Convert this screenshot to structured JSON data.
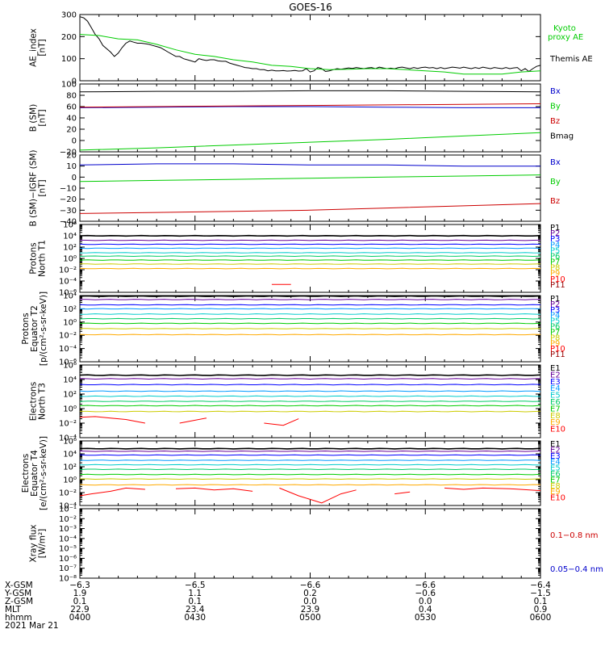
{
  "title": "GOES-16",
  "colors": {
    "black": "#000000",
    "green": "#00cc00",
    "blue": "#0000cc",
    "red": "#cc0000",
    "purple": "#9900cc",
    "p": [
      "#000000",
      "#660099",
      "#0000ff",
      "#0099ff",
      "#00cccc",
      "#00cc66",
      "#00cc00",
      "#cccc00",
      "#ffaa00",
      "#ff0000",
      "#990000"
    ]
  },
  "chart_data": [
    {
      "type": "line",
      "id": "ae",
      "ylabel": [
        "AE_index",
        "[nT]"
      ],
      "ylim": [
        0,
        300
      ],
      "ticks": [
        "0",
        "100",
        "200",
        "300"
      ],
      "scale": "linear",
      "x_range": [
        "0400",
        "0600"
      ],
      "legend": [
        {
          "text": "Kyoto",
          "color": "#00cc00"
        },
        {
          "text": "proxy AE",
          "color": "#00cc00"
        },
        {
          "text": "Themis AE",
          "color": "#000000"
        }
      ],
      "series": [
        {
          "color": "#000000",
          "x": [
            0,
            1,
            2,
            3,
            4,
            5,
            6,
            7,
            8,
            9,
            10,
            11,
            12,
            13,
            14,
            15,
            16,
            17,
            18,
            19,
            20,
            21,
            22,
            23,
            24,
            25,
            26,
            27,
            28,
            29,
            30,
            31,
            32,
            33,
            34,
            35,
            36,
            37,
            38,
            39,
            40,
            41,
            42,
            43,
            44,
            45,
            46,
            47,
            48,
            49,
            50,
            51,
            52,
            53,
            54,
            55,
            56,
            57,
            58,
            59,
            60,
            61,
            62,
            63,
            64,
            65,
            66,
            67,
            68,
            69,
            70,
            71,
            72,
            73,
            74,
            75,
            76,
            77,
            78,
            79,
            80,
            81,
            82,
            83,
            84,
            85,
            86,
            87,
            88,
            89,
            90,
            91,
            92,
            93,
            94,
            95,
            96,
            97,
            98,
            99,
            100,
            101,
            102,
            103,
            104,
            105,
            106,
            107,
            108,
            109,
            110,
            111,
            112,
            113,
            114,
            115,
            116,
            117,
            118,
            119,
            120
          ],
          "y": [
            290,
            285,
            270,
            240,
            210,
            190,
            160,
            145,
            130,
            110,
            125,
            150,
            170,
            180,
            175,
            170,
            170,
            168,
            165,
            160,
            155,
            150,
            140,
            130,
            120,
            110,
            110,
            100,
            95,
            90,
            85,
            100,
            95,
            92,
            95,
            95,
            90,
            88,
            88,
            80,
            75,
            70,
            65,
            60,
            58,
            55,
            55,
            50,
            50,
            45,
            48,
            45,
            45,
            46,
            44,
            45,
            47,
            44,
            45,
            55,
            40,
            45,
            60,
            55,
            42,
            45,
            50,
            55,
            52,
            55,
            58,
            56,
            60,
            57,
            55,
            58,
            60,
            55,
            62,
            58,
            55,
            57,
            54,
            60,
            62,
            58,
            55,
            60,
            56,
            60,
            62,
            58,
            60,
            55,
            60,
            55,
            58,
            62,
            60,
            57,
            62,
            58,
            55,
            60,
            56,
            62,
            58,
            55,
            60,
            57,
            55,
            60,
            55,
            58,
            60,
            45,
            55,
            42,
            55,
            65,
            70
          ]
        },
        {
          "color": "#00cc00",
          "x": [
            0,
            5,
            10,
            15,
            20,
            25,
            30,
            35,
            40,
            45,
            50,
            55,
            60,
            65,
            70,
            75,
            80,
            85,
            90,
            95,
            100,
            105,
            110,
            115,
            120
          ],
          "y": [
            210,
            205,
            190,
            185,
            165,
            140,
            120,
            110,
            95,
            85,
            70,
            65,
            55,
            50,
            52,
            55,
            55,
            50,
            45,
            40,
            30,
            30,
            30,
            40,
            45
          ]
        }
      ]
    },
    {
      "type": "line",
      "id": "bsm",
      "ylabel": [
        "B (SM)",
        "[nT]"
      ],
      "ylim": [
        -20,
        100
      ],
      "ticks": [
        "−20",
        "0",
        "20",
        "40",
        "60",
        "80",
        "100"
      ],
      "scale": "linear",
      "legend": [
        {
          "text": "Bx",
          "color": "#0000cc"
        },
        {
          "text": "By",
          "color": "#00cc00"
        },
        {
          "text": "Bz",
          "color": "#cc0000"
        },
        {
          "text": "Bmag",
          "color": "#000000"
        }
      ],
      "series": [
        {
          "color": "#000000",
          "x": [
            0,
            20,
            40,
            60,
            80,
            100,
            120
          ],
          "y": [
            86,
            87,
            87,
            88,
            88,
            87,
            86
          ]
        },
        {
          "color": "#0000cc",
          "x": [
            0,
            20,
            40,
            60,
            80,
            100,
            120
          ],
          "y": [
            58,
            59,
            60,
            60,
            59,
            58,
            58
          ]
        },
        {
          "color": "#cc0000",
          "x": [
            0,
            20,
            40,
            60,
            80,
            100,
            120
          ],
          "y": [
            59,
            60,
            61,
            62,
            63,
            64,
            65
          ]
        },
        {
          "color": "#00cc00",
          "x": [
            0,
            20,
            40,
            60,
            80,
            100,
            120
          ],
          "y": [
            -17,
            -13,
            -8,
            -3,
            2,
            8,
            14
          ]
        }
      ]
    },
    {
      "type": "line",
      "id": "bigrf",
      "ylabel": [
        "B (SM)−IGRF (SM)",
        "[nT]"
      ],
      "ylim": [
        -40,
        20
      ],
      "ticks": [
        "−40",
        "−30",
        "−20",
        "−10",
        "0",
        "10",
        "20"
      ],
      "scale": "linear",
      "legend": [
        {
          "text": "Bx",
          "color": "#0000cc"
        },
        {
          "text": "By",
          "color": "#00cc00"
        },
        {
          "text": "Bz",
          "color": "#cc0000"
        }
      ],
      "series": [
        {
          "color": "#0000cc",
          "x": [
            0,
            20,
            40,
            60,
            80,
            100,
            120
          ],
          "y": [
            11,
            12,
            12,
            11,
            11,
            10,
            10
          ]
        },
        {
          "color": "#00cc00",
          "x": [
            0,
            20,
            40,
            60,
            80,
            100,
            120
          ],
          "y": [
            -4,
            -3,
            -2,
            -1,
            0,
            1,
            2
          ]
        },
        {
          "color": "#cc0000",
          "x": [
            0,
            20,
            40,
            60,
            80,
            100,
            120
          ],
          "y": [
            -33,
            -32,
            -31,
            -30,
            -28,
            -26,
            -24
          ]
        }
      ]
    },
    {
      "type": "line",
      "id": "pnt1",
      "ylabel": [
        "Protons",
        "North T1"
      ],
      "ylim": [
        -6,
        6
      ],
      "ticks": [
        "10⁻⁶",
        "10⁻⁴",
        "10⁻²",
        "10⁰",
        "10²",
        "10⁴",
        "10⁶"
      ],
      "scale": "log",
      "legend": [
        {
          "text": "P1"
        },
        {
          "text": "P2"
        },
        {
          "text": "P3"
        },
        {
          "text": "P4"
        },
        {
          "text": "P5"
        },
        {
          "text": "P6"
        },
        {
          "text": "P7"
        },
        {
          "text": "P8"
        },
        {
          "text": "P9"
        },
        {
          "text": "P10"
        },
        {
          "text": "P11"
        }
      ],
      "levels": [
        4.0,
        3.2,
        2.5,
        1.8,
        1.0,
        0.4,
        -0.3,
        -1.0,
        -1.8,
        null,
        null
      ],
      "segments": [
        {
          "color_index": 9,
          "x": [
            50,
            55
          ],
          "y": [
            -4.6,
            -4.6
          ]
        }
      ]
    },
    {
      "type": "line",
      "id": "pet2",
      "ylabel": [
        "Protons",
        "Equator T2",
        "[p/(cm²-s-sr-keV)]"
      ],
      "ylim": [
        -6,
        4
      ],
      "ticks": [
        "10⁻⁶",
        "10⁻⁴",
        "10⁻²",
        "10⁰",
        "10²",
        "10⁴"
      ],
      "scale": "log",
      "legend": [
        {
          "text": "P1"
        },
        {
          "text": "P2"
        },
        {
          "text": "P3"
        },
        {
          "text": "P4"
        },
        {
          "text": "P5"
        },
        {
          "text": "P6"
        },
        {
          "text": "P7"
        },
        {
          "text": "P8"
        },
        {
          "text": "P9"
        },
        {
          "text": "P10"
        },
        {
          "text": "P11"
        }
      ],
      "levels": [
        3.9,
        3.4,
        2.6,
        2.0,
        1.2,
        0.5,
        -0.2,
        -1.0,
        -1.9,
        null,
        null
      ],
      "segments": []
    },
    {
      "type": "line",
      "id": "ent3",
      "ylabel": [
        "Electrons",
        "North T3"
      ],
      "ylim": [
        -4,
        6
      ],
      "ticks": [
        "10⁻⁴",
        "10⁻²",
        "10⁰",
        "10²",
        "10⁴",
        "10⁶"
      ],
      "scale": "log",
      "legend": [
        {
          "text": "E1"
        },
        {
          "text": "E2"
        },
        {
          "text": "E3"
        },
        {
          "text": "E4"
        },
        {
          "text": "E5"
        },
        {
          "text": "E6"
        },
        {
          "text": "E7"
        },
        {
          "text": "E8"
        },
        {
          "text": "E9"
        },
        {
          "text": "E10"
        }
      ],
      "levels": [
        4.6,
        4.1,
        3.3,
        2.4,
        1.7,
        1.0,
        0.4,
        -0.4,
        null,
        null
      ],
      "segments": [
        {
          "color_index": 9,
          "x": [
            0,
            4,
            8,
            12,
            17
          ],
          "y": [
            -1.2,
            -1.1,
            -1.3,
            -1.5,
            -2.0
          ]
        },
        {
          "color_index": 9,
          "x": [
            26,
            33
          ],
          "y": [
            -2.0,
            -1.3
          ]
        },
        {
          "color_index": 9,
          "x": [
            48,
            53,
            57
          ],
          "y": [
            -2.0,
            -2.3,
            -1.4
          ]
        }
      ]
    },
    {
      "type": "line",
      "id": "eet4",
      "ylabel": [
        "Electrons",
        "Equator T4",
        "[e/(cm²-s-sr-keV)]"
      ],
      "ylim": [
        -4,
        6
      ],
      "ticks": [
        "10⁻⁴",
        "10⁻²",
        "10⁰",
        "10²",
        "10⁴",
        "10⁶"
      ],
      "scale": "log",
      "legend": [
        {
          "text": "E1"
        },
        {
          "text": "E2"
        },
        {
          "text": "E3"
        },
        {
          "text": "E4"
        },
        {
          "text": "E5"
        },
        {
          "text": "E6"
        },
        {
          "text": "E7"
        },
        {
          "text": "E8"
        },
        {
          "text": "E9"
        },
        {
          "text": "E10"
        }
      ],
      "levels": [
        4.8,
        4.4,
        3.8,
        3.0,
        2.3,
        1.6,
        0.8,
        0.1,
        -0.8,
        null
      ],
      "segments": [
        {
          "color_index": 9,
          "x": [
            0,
            3,
            8,
            12,
            17
          ],
          "y": [
            -2.5,
            -2.2,
            -1.8,
            -1.3,
            -1.5
          ]
        },
        {
          "color_index": 9,
          "x": [
            25,
            30,
            35,
            40,
            45
          ],
          "y": [
            -1.4,
            -1.3,
            -1.6,
            -1.4,
            -1.8
          ]
        },
        {
          "color_index": 9,
          "x": [
            52,
            57,
            63,
            68,
            72
          ],
          "y": [
            -1.3,
            -2.5,
            -3.6,
            -2.2,
            -1.6
          ]
        },
        {
          "color_index": 9,
          "x": [
            82,
            86
          ],
          "y": [
            -2.2,
            -1.9
          ]
        },
        {
          "color_index": 9,
          "x": [
            95,
            100,
            105,
            112,
            120
          ],
          "y": [
            -1.3,
            -1.5,
            -1.3,
            -1.4,
            -1.7
          ]
        }
      ]
    },
    {
      "type": "line",
      "id": "xray",
      "ylabel": [
        "Xray flux",
        "[W/m²]"
      ],
      "ylim": [
        -8,
        -1
      ],
      "ticks": [
        "10⁻⁸",
        "10⁻⁷",
        "10⁻⁶",
        "10⁻⁵",
        "10⁻⁴",
        "10⁻³",
        "10⁻²",
        "10⁻¹"
      ],
      "scale": "log",
      "legend": [
        {
          "text": "0.1−0.8 nm",
          "color": "#cc0000"
        },
        {
          "text": "0.05−0.4 nm",
          "color": "#0000cc"
        }
      ],
      "series": []
    }
  ],
  "footer": {
    "rows": [
      {
        "label": "X-GSM",
        "values": [
          "−6.3",
          "−6.5",
          "−6.6",
          "−6.6",
          "−6.4"
        ]
      },
      {
        "label": "Y-GSM",
        "values": [
          "1.9",
          "1.1",
          "0.2",
          "−0.6",
          "−1.5"
        ]
      },
      {
        "label": "Z-GSM",
        "values": [
          "0.1",
          "0.1",
          "0.0",
          "0.0",
          "0.1"
        ]
      },
      {
        "label": "MLT",
        "values": [
          "22.9",
          "23.4",
          "23.9",
          "0.4",
          "0.9"
        ]
      },
      {
        "label": "hhmm",
        "values": [
          "0400",
          "0430",
          "0500",
          "0530",
          "0600"
        ]
      }
    ],
    "date": "2021 Mar 21"
  }
}
